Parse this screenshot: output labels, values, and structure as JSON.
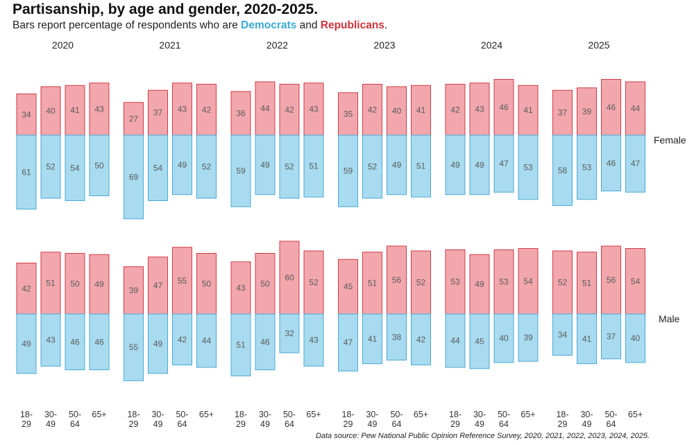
{
  "title": "Partisanship, by age and gender, 2020-2025.",
  "subtitle": {
    "prefix": "Bars report percentage of respondents who are ",
    "dem_word": "Democrats",
    "middle": " and ",
    "rep_word": "Republicans",
    "suffix": "."
  },
  "source": "Data source: Pew National Public Opinion Reference Survey, 2020, 2021, 2022, 2023, 2024, 2025.",
  "colors": {
    "dem_fill": "#a8dbef",
    "dem_stroke": "#4aa8d4",
    "rep_fill": "#f2a7ad",
    "rep_stroke": "#cf3a44",
    "dem_text": "#3aa9d6",
    "rep_text": "#d2333c"
  },
  "chart_data": {
    "type": "bar",
    "title": "Partisanship, by age and gender, 2020-2025.",
    "years": [
      "2020",
      "2021",
      "2022",
      "2023",
      "2024",
      "2025"
    ],
    "categories": [
      [
        "18-",
        "29"
      ],
      [
        "30-",
        "49"
      ],
      [
        "50-",
        "64"
      ],
      [
        "65+",
        ""
      ]
    ],
    "rows": [
      {
        "label": "Female",
        "democrats": [
          [
            61,
            52,
            54,
            50
          ],
          [
            69,
            54,
            49,
            52
          ],
          [
            59,
            49,
            52,
            51
          ],
          [
            59,
            52,
            49,
            51
          ],
          [
            49,
            49,
            47,
            53
          ],
          [
            58,
            53,
            46,
            47
          ]
        ],
        "republicans": [
          [
            34,
            40,
            41,
            43
          ],
          [
            27,
            37,
            43,
            42
          ],
          [
            36,
            44,
            42,
            43
          ],
          [
            35,
            42,
            40,
            41
          ],
          [
            42,
            43,
            46,
            41
          ],
          [
            37,
            39,
            46,
            44
          ]
        ]
      },
      {
        "label": "Male",
        "democrats": [
          [
            49,
            43,
            46,
            46
          ],
          [
            55,
            49,
            42,
            44
          ],
          [
            51,
            46,
            32,
            43
          ],
          [
            47,
            41,
            38,
            42
          ],
          [
            44,
            45,
            40,
            39
          ],
          [
            34,
            41,
            37,
            40
          ]
        ],
        "republicans": [
          [
            42,
            51,
            50,
            49
          ],
          [
            39,
            47,
            55,
            50
          ],
          [
            43,
            50,
            60,
            52
          ],
          [
            45,
            51,
            56,
            52
          ],
          [
            53,
            49,
            53,
            54
          ],
          [
            52,
            51,
            56,
            54
          ]
        ]
      }
    ],
    "units": "percent"
  }
}
